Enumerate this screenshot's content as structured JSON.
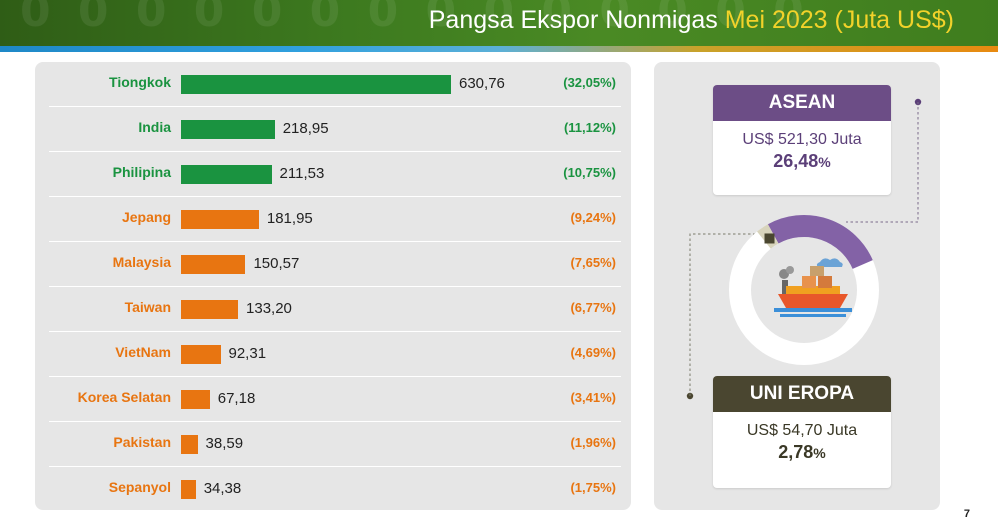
{
  "title": {
    "main": "Pangsa Ekspor Nonmigas ",
    "highlight": "Mei 2023 (Juta US$)"
  },
  "colors": {
    "green": "#1a9340",
    "orange": "#e87511",
    "asean": "#6c4d86",
    "eu": "#4a4630"
  },
  "chart_data": {
    "type": "bar",
    "orientation": "horizontal",
    "categories": [
      "Tiongkok",
      "India",
      "Philipina",
      "Jepang",
      "Malaysia",
      "Taiwan",
      "VietNam",
      "Korea Selatan",
      "Pakistan",
      "Sepanyol"
    ],
    "values": [
      630.76,
      218.95,
      211.53,
      181.95,
      150.57,
      133.2,
      92.31,
      67.18,
      38.59,
      34.38
    ],
    "value_labels": [
      "630,76",
      "218,95",
      "211,53",
      "181,95",
      "150,57",
      "133,20",
      "92,31",
      "67,18",
      "38,59",
      "34,38"
    ],
    "shares": [
      "(32,05%)",
      "(11,12%)",
      "(10,75%)",
      "(9,24%)",
      "(7,65%)",
      "(6,77%)",
      "(4,69%)",
      "(3,41%)",
      "(1,96%)",
      "(1,75%)"
    ],
    "bar_colors": [
      "#1a9340",
      "#1a9340",
      "#1a9340",
      "#e87511",
      "#e87511",
      "#e87511",
      "#e87511",
      "#e87511",
      "#e87511",
      "#e87511"
    ],
    "xlim": [
      0,
      630.76
    ]
  },
  "asean": {
    "title": "ASEAN",
    "value": "US$ 521,30 Juta",
    "share_value": "26,48",
    "share_unit": "%",
    "share": 26.48
  },
  "eu": {
    "title": "UNI EROPA",
    "value": "US$ 54,70 Juta",
    "share_value": "2,78",
    "share_unit": "%",
    "share": 2.78
  },
  "page_number": "7"
}
